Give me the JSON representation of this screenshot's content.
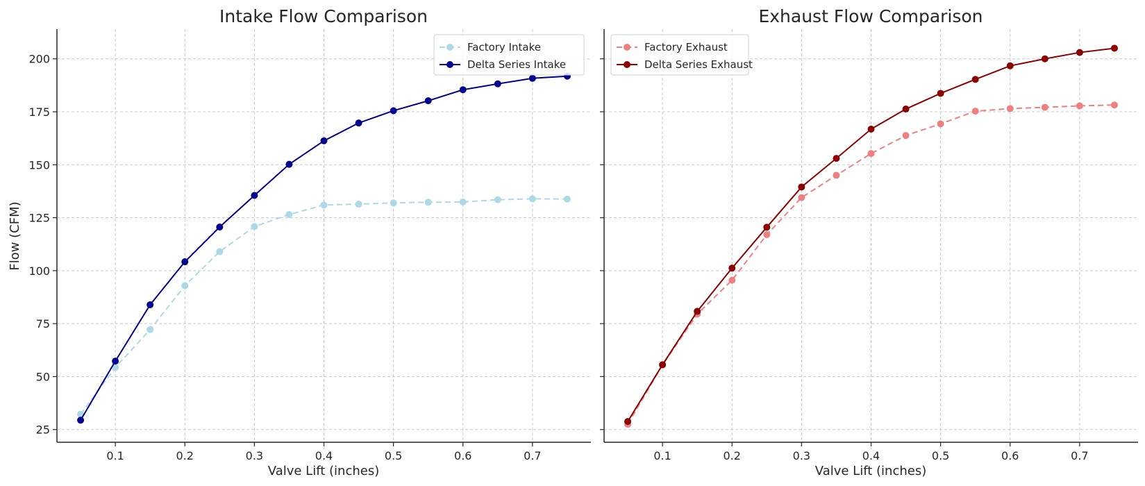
{
  "chart_data": [
    {
      "type": "line",
      "title": "Intake Flow Comparison",
      "xlabel": "Valve Lift (inches)",
      "ylabel": "Flow (CFM)",
      "xlim": [
        0.016,
        0.784
      ],
      "ylim": [
        19,
        214
      ],
      "xticks": [
        0.1,
        0.2,
        0.3,
        0.4,
        0.5,
        0.6,
        0.7
      ],
      "yticks": [
        25,
        50,
        75,
        100,
        125,
        150,
        175,
        200
      ],
      "show_ytick_labels": true,
      "grid": true,
      "legend_position": "top-right",
      "x": [
        0.05,
        0.1,
        0.15,
        0.2,
        0.25,
        0.3,
        0.35,
        0.4,
        0.45,
        0.5,
        0.55,
        0.6,
        0.65,
        0.7,
        0.75
      ],
      "series": [
        {
          "name": "Factory Intake",
          "color": "#add8e6",
          "style": "dashed",
          "values": [
            32.2,
            54.3,
            72.2,
            92.9,
            109,
            120.8,
            126.5,
            131,
            131.4,
            132,
            132.3,
            132.4,
            133.5,
            133.9,
            133.8
          ]
        },
        {
          "name": "Delta Series Intake",
          "color": "#00008b",
          "style": "solid",
          "values": [
            29.4,
            57.3,
            83.9,
            104.2,
            120.6,
            135.5,
            150.2,
            161.3,
            169.7,
            175.5,
            180.2,
            185.4,
            188.2,
            190.8,
            191.8
          ]
        }
      ]
    },
    {
      "type": "line",
      "title": "Exhaust Flow Comparison",
      "xlabel": "Valve Lift (inches)",
      "ylabel": "",
      "xlim": [
        0.016,
        0.784
      ],
      "ylim": [
        19,
        214
      ],
      "xticks": [
        0.1,
        0.2,
        0.3,
        0.4,
        0.5,
        0.6,
        0.7
      ],
      "yticks": [
        25,
        50,
        75,
        100,
        125,
        150,
        175,
        200
      ],
      "show_ytick_labels": false,
      "grid": true,
      "legend_position": "top-left",
      "x": [
        0.05,
        0.1,
        0.15,
        0.2,
        0.25,
        0.3,
        0.35,
        0.4,
        0.45,
        0.5,
        0.55,
        0.6,
        0.65,
        0.7,
        0.75
      ],
      "series": [
        {
          "name": "Factory Exhaust",
          "color": "#f08080",
          "style": "dashed",
          "values": [
            27.5,
            55.5,
            79.5,
            95.5,
            117,
            134.5,
            145,
            155.3,
            163.8,
            169.3,
            175.3,
            176.5,
            177.1,
            177.8,
            178.2
          ]
        },
        {
          "name": "Delta Series Exhaust",
          "color": "#8b0000",
          "style": "solid",
          "values": [
            28.8,
            55.6,
            80.8,
            101.2,
            120.5,
            139.5,
            153,
            166.8,
            176.3,
            183.7,
            190.3,
            196.7,
            200,
            203,
            205
          ]
        }
      ]
    }
  ]
}
